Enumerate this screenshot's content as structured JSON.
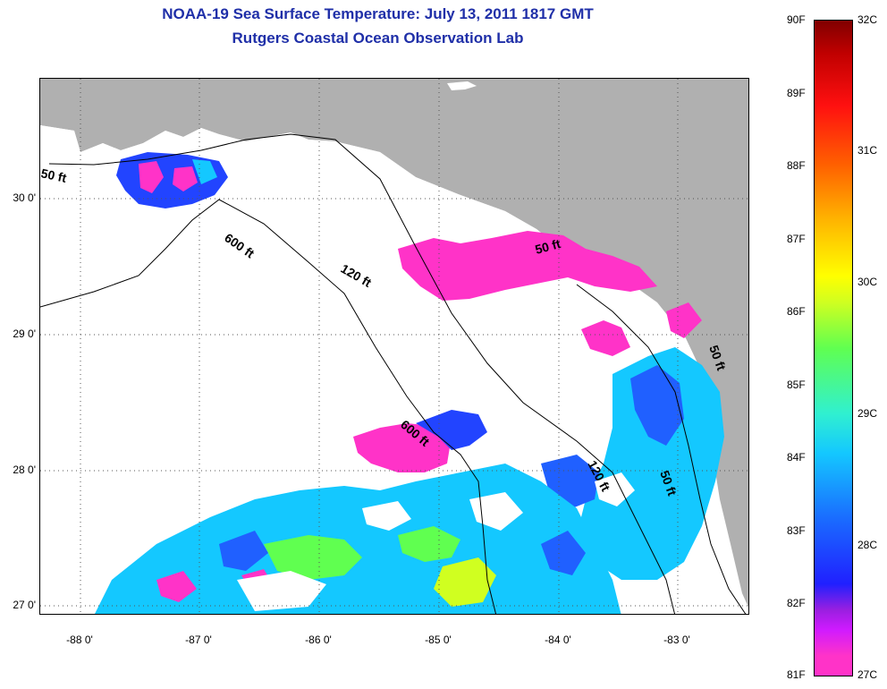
{
  "title_line1": "NOAA-19 Sea Surface Temperature:  July 13, 2011 1817 GMT",
  "title_line2": "Rutgers Coastal Ocean Observation Lab",
  "map": {
    "longitude_labels": [
      "-88 0'",
      "-87 0'",
      "-86 0'",
      "-85 0'",
      "-84 0'",
      "-83 0'"
    ],
    "latitude_labels": [
      "30 0'",
      "29 0'",
      "28 0'",
      "27 0'"
    ],
    "depth_contours": [
      "50 ft",
      "600 ft",
      "120 ft",
      "50 ft",
      "600 ft",
      "120 ft",
      "50 ft",
      "50 ft"
    ],
    "colors": {
      "land": "#b0b0b0",
      "cloud_nodata": "#ffffff",
      "contour": "#000000"
    }
  },
  "colorbar": {
    "fahrenheit_labels": [
      "90F",
      "89F",
      "88F",
      "87F",
      "86F",
      "85F",
      "84F",
      "83F",
      "82F",
      "81F"
    ],
    "celsius_labels": [
      "32C",
      "31C",
      "30C",
      "29C",
      "28C",
      "27C"
    ],
    "range_f": [
      81,
      90
    ],
    "range_c": [
      27.2,
      32.2
    ]
  }
}
